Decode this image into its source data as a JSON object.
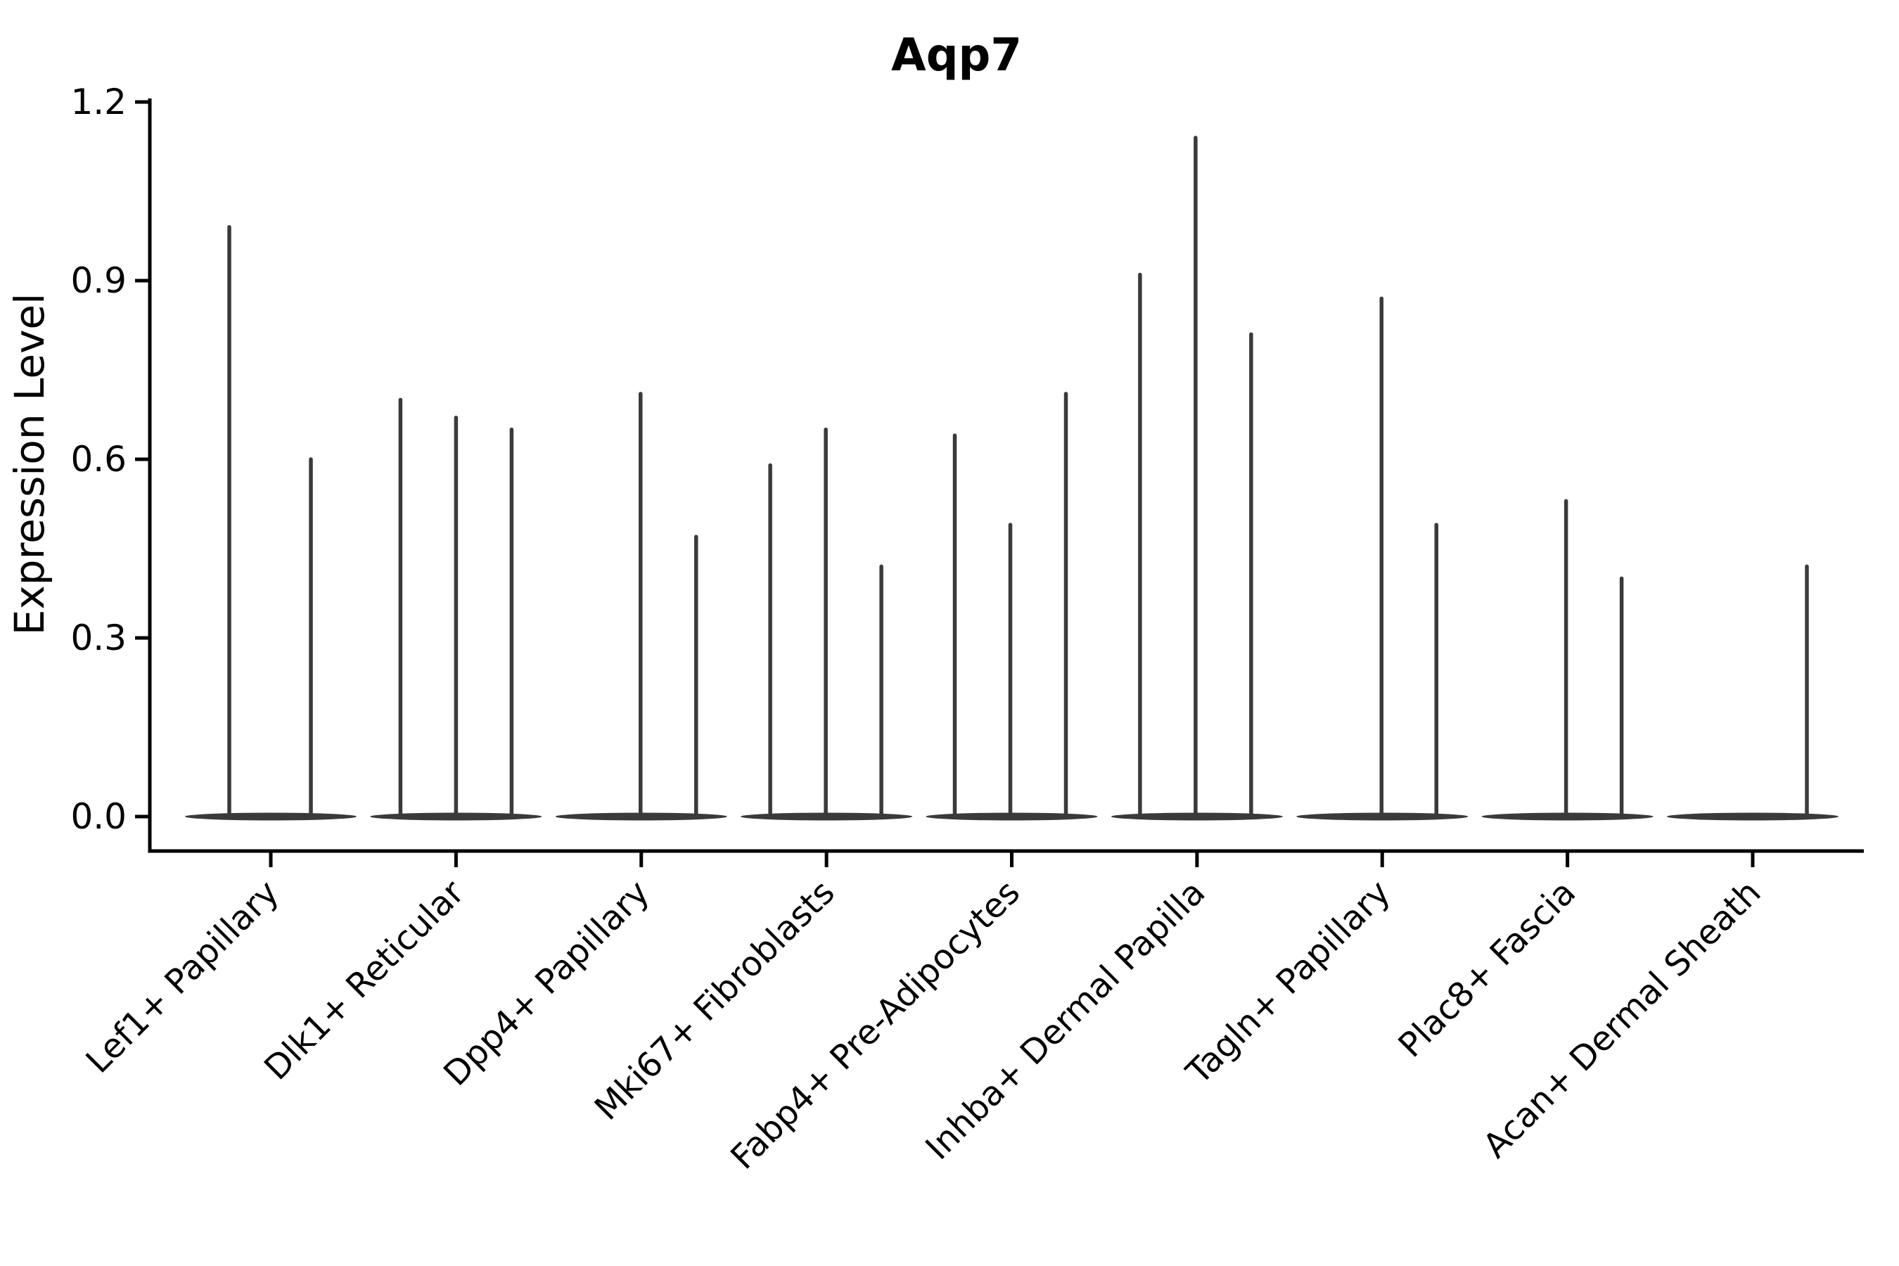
{
  "chart_data": {
    "type": "violin",
    "title": "Aqp7",
    "ylabel": "Expression Level",
    "xlabel": "",
    "ylim": [
      0.0,
      1.2
    ],
    "yticks": [
      0.0,
      0.3,
      0.6,
      0.9,
      1.2
    ],
    "grid": false,
    "legend": null,
    "colors": {
      "violin": "#3a3a3a",
      "axis": "#000000",
      "text": "#000000",
      "background": "#ffffff"
    },
    "violins": [
      {
        "category": "Lef1+ Papillary",
        "spikes": [
          {
            "offset": -59,
            "value": 0.99
          },
          {
            "offset": 57,
            "value": 0.6
          }
        ]
      },
      {
        "category": "Dlk1+ Reticular",
        "spikes": [
          {
            "offset": -79,
            "value": 0.7
          },
          {
            "offset": 0,
            "value": 0.67
          },
          {
            "offset": 79,
            "value": 0.65
          }
        ]
      },
      {
        "category": "Dpp4+ Papillary",
        "spikes": [
          {
            "offset": -1,
            "value": 0.71
          },
          {
            "offset": 78,
            "value": 0.47
          }
        ]
      },
      {
        "category": "Mki67+ Fibroblasts",
        "spikes": [
          {
            "offset": -80,
            "value": 0.59
          },
          {
            "offset": -1,
            "value": 0.65
          },
          {
            "offset": 78,
            "value": 0.42
          }
        ]
      },
      {
        "category": "Fabp4+ Pre-Adipocytes",
        "spikes": [
          {
            "offset": -81,
            "value": 0.64
          },
          {
            "offset": -2,
            "value": 0.49
          },
          {
            "offset": 77,
            "value": 0.71
          }
        ]
      },
      {
        "category": "Inhba+ Dermal Papilla",
        "spikes": [
          {
            "offset": -81,
            "value": 0.91
          },
          {
            "offset": -2,
            "value": 1.14
          },
          {
            "offset": 77,
            "value": 0.81
          }
        ]
      },
      {
        "category": "Tagln+ Papillary",
        "spikes": [
          {
            "offset": -1,
            "value": 0.87
          },
          {
            "offset": 77,
            "value": 0.49
          }
        ]
      },
      {
        "category": "Plac8+ Fascia",
        "spikes": [
          {
            "offset": -2,
            "value": 0.53
          },
          {
            "offset": 77,
            "value": 0.4
          }
        ]
      },
      {
        "category": "Acan+ Dermal Sheath",
        "spikes": [
          {
            "offset": 77,
            "value": 0.42
          }
        ]
      }
    ]
  }
}
